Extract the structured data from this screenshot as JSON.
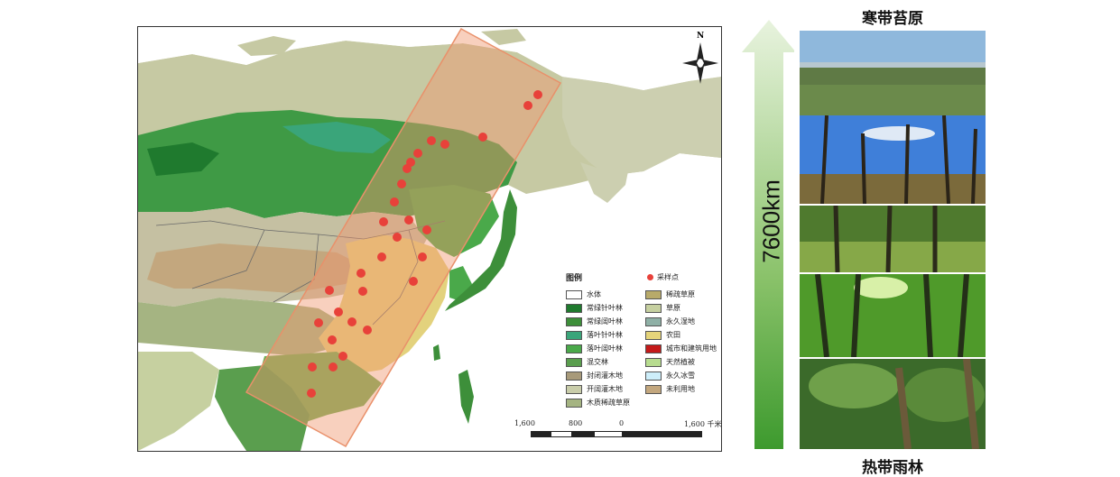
{
  "map": {
    "north_label": "N",
    "legend": {
      "title": "图例",
      "sample_label": "采样点",
      "sample_color": "#e8413a",
      "left_items": [
        {
          "label": "水体",
          "color": "#ffffff"
        },
        {
          "label": "常绿针叶林",
          "color": "#1f7a2e"
        },
        {
          "label": "常绿阔叶林",
          "color": "#3d8f3a"
        },
        {
          "label": "落叶针叶林",
          "color": "#3aa57a"
        },
        {
          "label": "落叶阔叶林",
          "color": "#4aa94a"
        },
        {
          "label": "混交林",
          "color": "#5a9e4e"
        },
        {
          "label": "封闭灌木地",
          "color": "#a89a7a"
        },
        {
          "label": "开阔灌木地",
          "color": "#c9cdaa"
        },
        {
          "label": "木质稀疏草原",
          "color": "#a5b482"
        }
      ],
      "right_items": [
        {
          "label": "稀疏草原",
          "color": "#b8aa6a"
        },
        {
          "label": "草原",
          "color": "#c6d0a0"
        },
        {
          "label": "永久湿地",
          "color": "#8fb0a6"
        },
        {
          "label": "农田",
          "color": "#e5d47a"
        },
        {
          "label": "城市和建筑用地",
          "color": "#c41a1a"
        },
        {
          "label": "天然植被",
          "color": "#b7dc8f"
        },
        {
          "label": "永久冰雪",
          "color": "#cdeefa"
        },
        {
          "label": "未利用地",
          "color": "#c3a77e"
        }
      ]
    },
    "scale": {
      "l1": "1,600",
      "l2": "800",
      "l3": "0",
      "l4": "1,600 千米"
    }
  },
  "arrow": {
    "label": "7600km",
    "color": "#4aa33a"
  },
  "photos": {
    "top_title": "寒带苔原",
    "bottom_title": "热带雨林",
    "items": [
      {
        "name": "tundra-photo"
      },
      {
        "name": "boreal-forest-photo"
      },
      {
        "name": "temperate-forest-photo"
      },
      {
        "name": "subtropical-forest-photo"
      },
      {
        "name": "tropical-rainforest-photo"
      }
    ]
  }
}
